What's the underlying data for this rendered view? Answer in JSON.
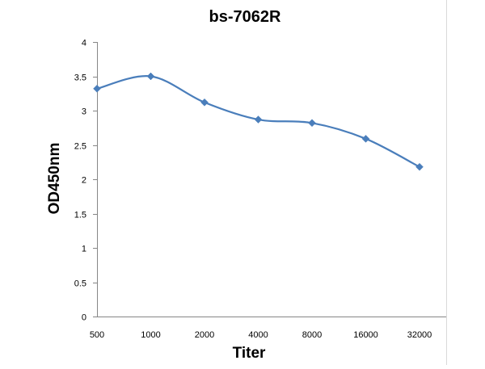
{
  "chart_data": {
    "type": "line",
    "title": "bs-7062R",
    "xlabel": "Titer",
    "ylabel": "OD450nm",
    "categories": [
      "500",
      "1000",
      "2000",
      "4000",
      "8000",
      "16000",
      "32000"
    ],
    "series": [
      {
        "values": [
          3.32,
          3.5,
          3.12,
          2.87,
          2.82,
          2.59,
          2.18
        ]
      }
    ],
    "ylim": [
      0,
      4
    ],
    "yticks": [
      "0",
      "0.5",
      "1",
      "1.5",
      "2",
      "2.5",
      "3",
      "3.5",
      "4"
    ],
    "grid": false,
    "legend": "none",
    "line_color": "#4a7ebb",
    "marker": "diamond"
  }
}
